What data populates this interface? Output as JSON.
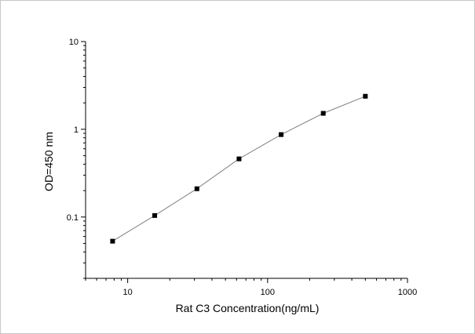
{
  "chart_data": {
    "type": "scatter",
    "xlabel": "Rat C3 Concentration(ng/mL)",
    "ylabel": "OD=450 nm",
    "x_scale": "log",
    "y_scale": "log",
    "xlim": [
      5,
      1000
    ],
    "ylim": [
      0.02,
      10
    ],
    "x_ticks": [
      10,
      100,
      1000
    ],
    "x_tick_labels": [
      "10",
      "100",
      "1000"
    ],
    "y_ticks": [
      0.1,
      1,
      10
    ],
    "y_tick_labels": [
      "0.1",
      "1",
      "10"
    ],
    "grid": false,
    "legend": "none",
    "marker_color": "#000000",
    "line_color": "#808080",
    "series": [
      {
        "x": [
          7.8,
          15.6,
          31.25,
          62.5,
          125,
          250,
          500
        ],
        "y": [
          0.053,
          0.104,
          0.21,
          0.46,
          0.87,
          1.52,
          2.38
        ]
      }
    ]
  }
}
